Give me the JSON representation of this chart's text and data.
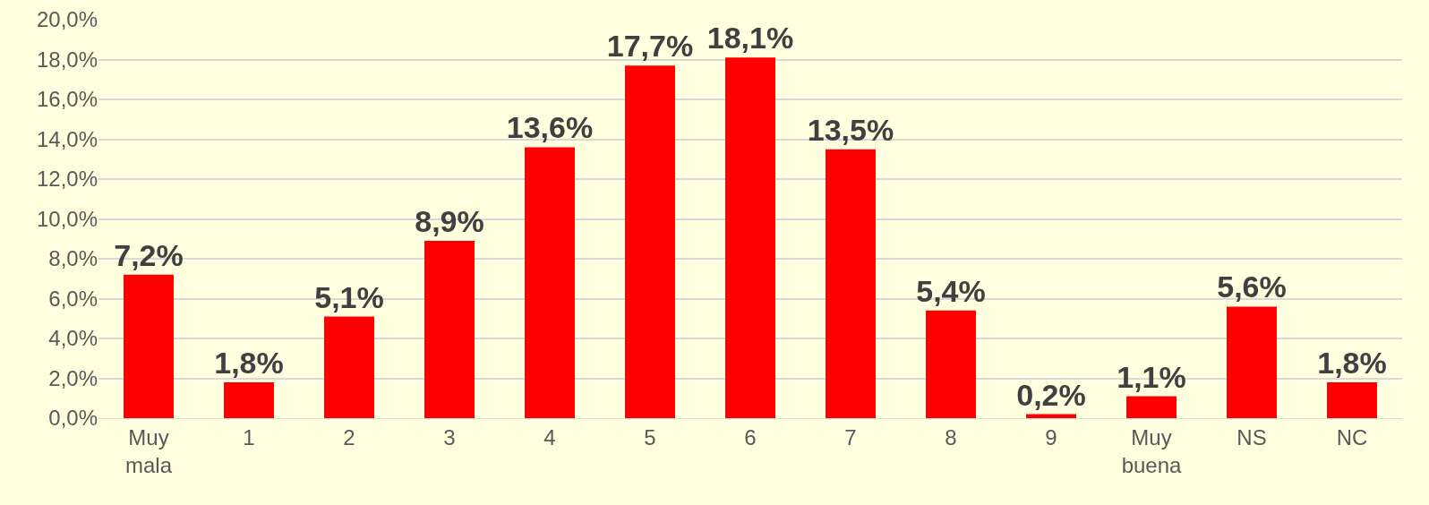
{
  "chart_data": {
    "type": "bar",
    "categories": [
      "Muy mala",
      "1",
      "2",
      "3",
      "4",
      "5",
      "6",
      "7",
      "8",
      "9",
      "Muy buena",
      "NS",
      "NC"
    ],
    "values": [
      7.2,
      1.8,
      5.1,
      8.9,
      13.6,
      17.7,
      18.1,
      13.5,
      5.4,
      0.2,
      1.1,
      5.6,
      1.8
    ],
    "value_labels": [
      "7,2%",
      "1,8%",
      "5,1%",
      "8,9%",
      "13,6%",
      "17,7%",
      "18,1%",
      "13,5%",
      "5,4%",
      "0,2%",
      "1,1%",
      "5,6%",
      "1,8%"
    ],
    "color": "#ff0000",
    "ylim": [
      0,
      20
    ],
    "yticks": [
      {
        "value": 0,
        "label": "0,0%"
      },
      {
        "value": 2,
        "label": "2,0%"
      },
      {
        "value": 4,
        "label": "4,0%"
      },
      {
        "value": 6,
        "label": "6,0%"
      },
      {
        "value": 8,
        "label": "8,0%"
      },
      {
        "value": 10,
        "label": "10,0%"
      },
      {
        "value": 12,
        "label": "12,0%"
      },
      {
        "value": 14,
        "label": "14,0%"
      },
      {
        "value": 16,
        "label": "16,0%"
      },
      {
        "value": 18,
        "label": "18,0%"
      },
      {
        "value": 20,
        "label": "20,0%"
      }
    ],
    "grid": "y"
  }
}
